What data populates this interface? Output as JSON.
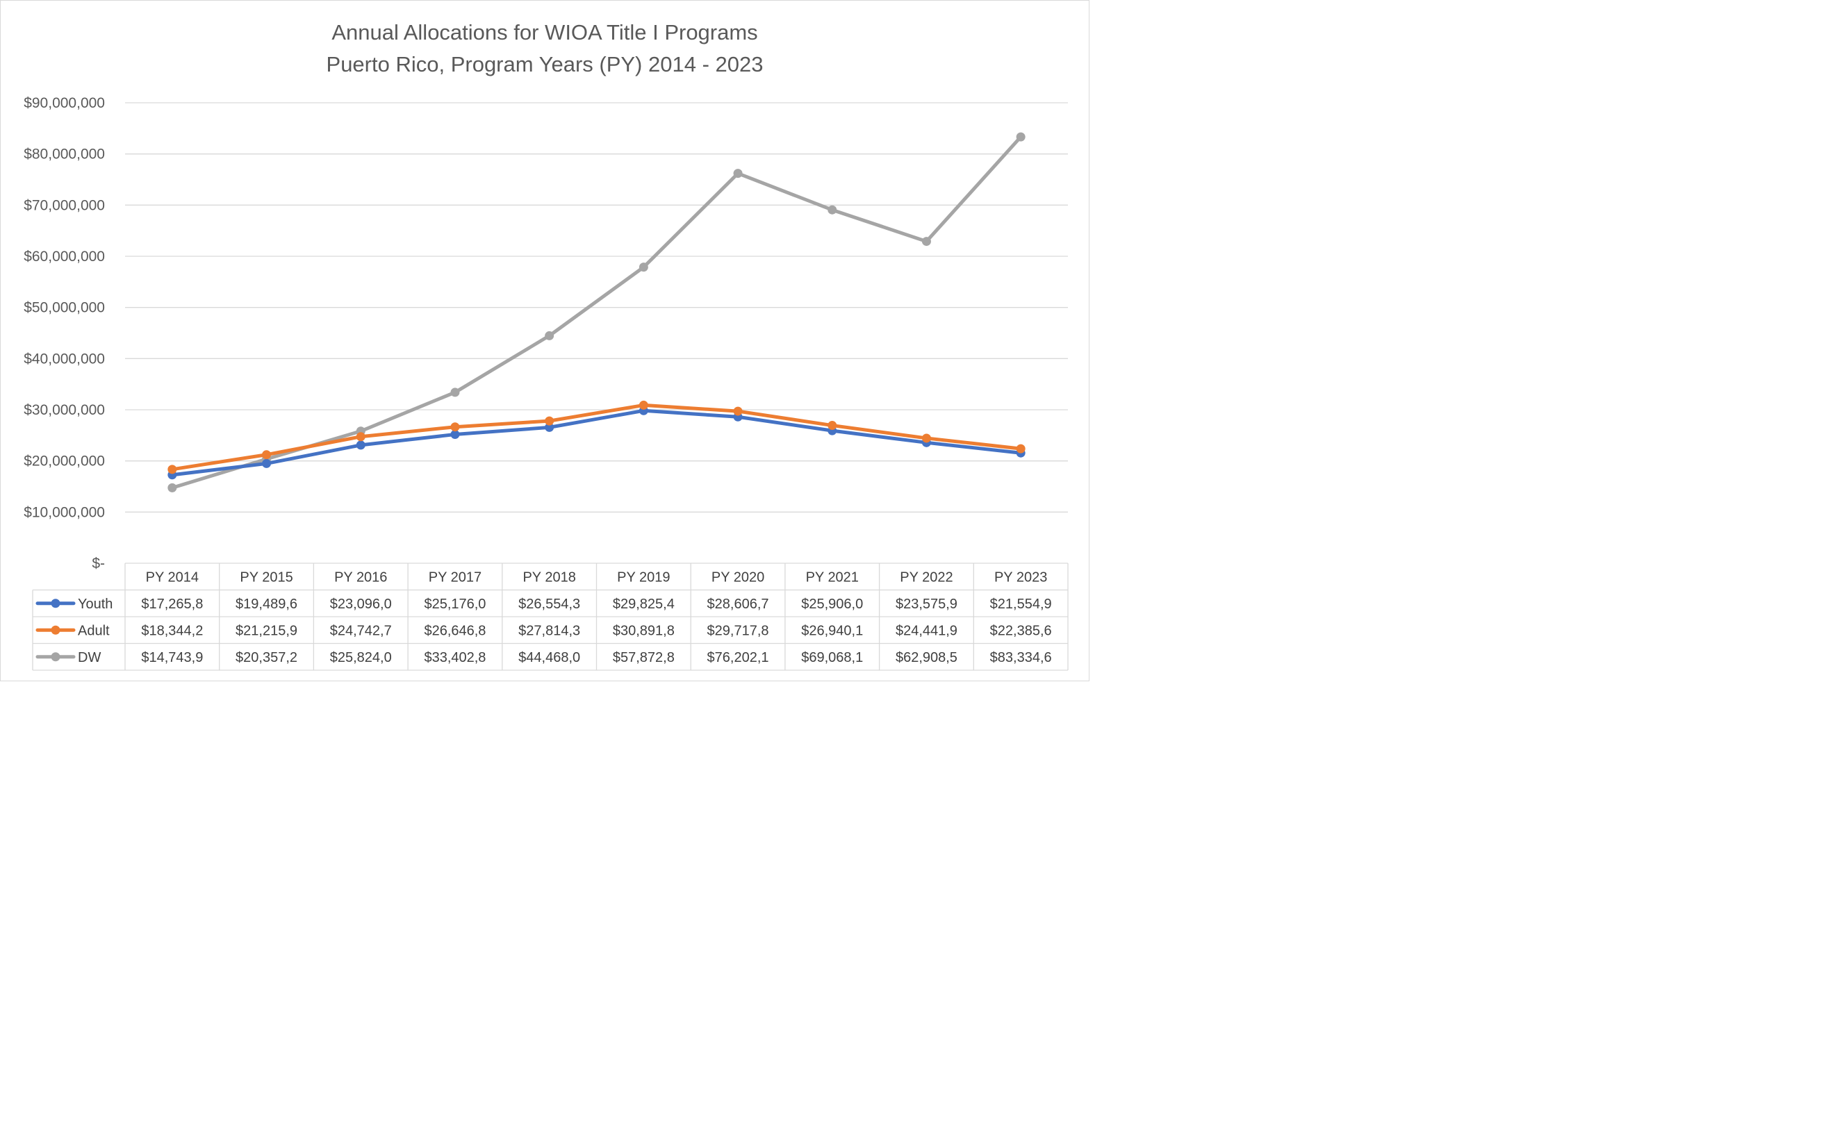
{
  "chart_data": {
    "type": "line",
    "title": "Annual Allocations for WIOA Title I Programs",
    "subtitle": "Puerto Rico, Program Years (PY) 2014 - 2023",
    "categories": [
      "PY 2014",
      "PY 2015",
      "PY 2016",
      "PY 2017",
      "PY 2018",
      "PY 2019",
      "PY 2020",
      "PY 2021",
      "PY 2022",
      "PY 2023"
    ],
    "ylim": [
      0,
      90000000
    ],
    "yticks": [
      0,
      10000000,
      20000000,
      30000000,
      40000000,
      50000000,
      60000000,
      70000000,
      80000000,
      90000000
    ],
    "ytick_labels": [
      "$-",
      "$10,000,000",
      "$20,000,000",
      "$30,000,000",
      "$40,000,000",
      "$50,000,000",
      "$60,000,000",
      "$70,000,000",
      "$80,000,000",
      "$90,000,000"
    ],
    "grid": true,
    "legend": "data table",
    "series": [
      {
        "name": "Youth",
        "color": "#4472C4",
        "values": [
          17265800,
          19489600,
          23096000,
          25176000,
          26554300,
          29825400,
          28606700,
          25906000,
          23575900,
          21554900
        ],
        "table_labels": [
          "$17,265,8",
          "$19,489,6",
          "$23,096,0",
          "$25,176,0",
          "$26,554,3",
          "$29,825,4",
          "$28,606,7",
          "$25,906,0",
          "$23,575,9",
          "$21,554,9"
        ]
      },
      {
        "name": "Adult",
        "color": "#ED7D31",
        "values": [
          18344200,
          21215900,
          24742700,
          26646800,
          27814300,
          30891800,
          29717800,
          26940100,
          24441900,
          22385600
        ],
        "table_labels": [
          "$18,344,2",
          "$21,215,9",
          "$24,742,7",
          "$26,646,8",
          "$27,814,3",
          "$30,891,8",
          "$29,717,8",
          "$26,940,1",
          "$24,441,9",
          "$22,385,6"
        ]
      },
      {
        "name": "DW",
        "color": "#A5A5A5",
        "values": [
          14743900,
          20357200,
          25824000,
          33402800,
          44468000,
          57872800,
          76202100,
          69068100,
          62908500,
          83334600
        ],
        "table_labels": [
          "$14,743,9",
          "$20,357,2",
          "$25,824,0",
          "$33,402,8",
          "$44,468,0",
          "$57,872,8",
          "$76,202,1",
          "$69,068,1",
          "$62,908,5",
          "$83,334,6"
        ]
      }
    ]
  }
}
